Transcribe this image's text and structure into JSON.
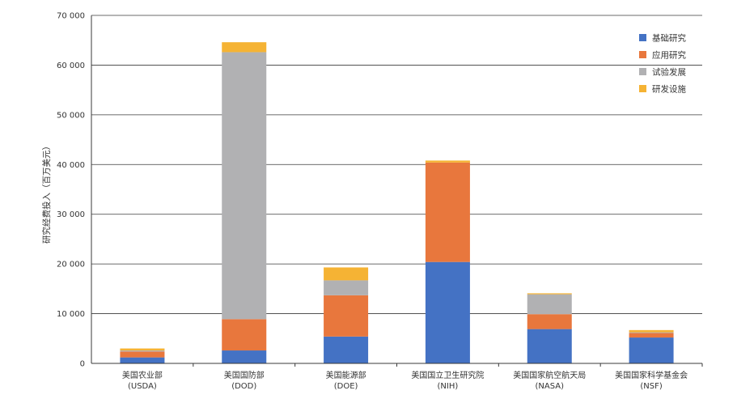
{
  "chart_data": {
    "type": "bar",
    "stacked": true,
    "title": "",
    "xlabel": "",
    "ylabel": "研究经费投入（百万美元）",
    "ylim": [
      0,
      70000
    ],
    "yticks": [
      0,
      10000,
      20000,
      30000,
      40000,
      50000,
      60000,
      70000
    ],
    "ytick_labels": [
      "0",
      "10 000",
      "20 000",
      "30 000",
      "40 000",
      "50 000",
      "60 000",
      "70 000"
    ],
    "grid": true,
    "legend_position": "top-right",
    "categories": [
      {
        "name": "美国农业部",
        "abbr": "(USDA)"
      },
      {
        "name": "美国国防部",
        "abbr": "(DOD)"
      },
      {
        "name": "美国能源部",
        "abbr": "(DOE)"
      },
      {
        "name": "美国国立卫生研究院",
        "abbr": "(NIH)"
      },
      {
        "name": "美国国家航空航天局",
        "abbr": "(NASA)"
      },
      {
        "name": "美国国家科学基金会",
        "abbr": "(NSF)"
      }
    ],
    "series": [
      {
        "name": "基础研究",
        "color": "#4472c4",
        "values": [
          1200,
          2600,
          5400,
          20400,
          6900,
          5200
        ]
      },
      {
        "name": "应用研究",
        "color": "#e8773d",
        "values": [
          1200,
          6300,
          8300,
          20000,
          3000,
          900
        ]
      },
      {
        "name": "试验发展",
        "color": "#b1b1b3",
        "values": [
          200,
          53700,
          3000,
          0,
          4000,
          150
        ]
      },
      {
        "name": "研发设施",
        "color": "#f5b334",
        "values": [
          400,
          2000,
          2600,
          400,
          200,
          450
        ]
      }
    ]
  }
}
